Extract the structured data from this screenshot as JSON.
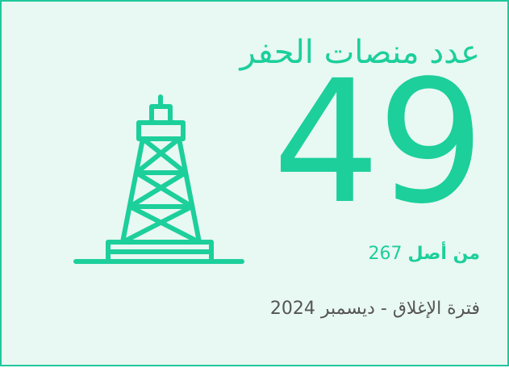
{
  "title": "عدد منصات الحفر",
  "value": "49",
  "subtitle": {
    "prefix": "من أصل",
    "total": "267"
  },
  "footer": "فترة الإغلاق - ديسمبر 2024"
}
